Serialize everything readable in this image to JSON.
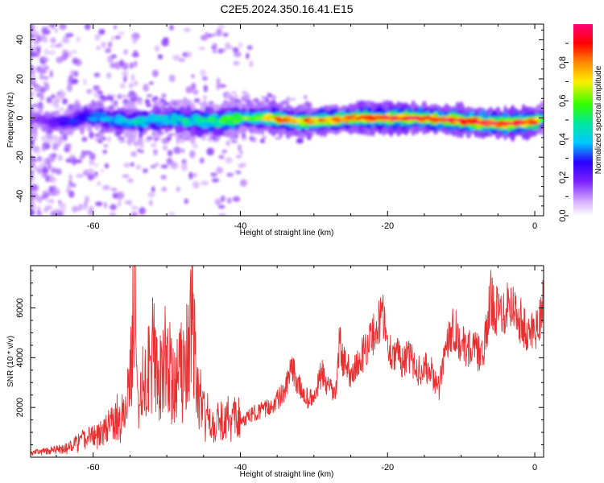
{
  "title": "C2E5.2024.350.16.41.E15",
  "chart_data": [
    {
      "type": "heatmap",
      "xlabel": "Height of straight line (km)",
      "ylabel": "Frequency (Hz)",
      "xlim": [
        -68.5,
        1.2
      ],
      "ylim": [
        -50,
        48
      ],
      "x_ticks": [
        -60,
        -40,
        -20,
        0
      ],
      "y_ticks": [
        -40,
        -20,
        0,
        20,
        40
      ],
      "colorbar": {
        "label": "Normalized spectral amplitude",
        "range": [
          0,
          1
        ],
        "ticks": [
          0.0,
          0.2,
          0.4,
          0.6,
          0.8
        ],
        "scheme": "white-purple-blue-cyan-green-yellow-red-pink"
      },
      "ridge": {
        "x": [
          -68,
          -64,
          -60,
          -56,
          -52,
          -48,
          -44,
          -40,
          -36,
          -32,
          -28,
          -24,
          -20,
          -16,
          -12,
          -8,
          -4,
          0,
          1
        ],
        "frequency": [
          -1,
          -2,
          1,
          -2,
          -1,
          -1,
          -2,
          0,
          0,
          -2,
          -1,
          0,
          0,
          0,
          -1,
          -2,
          -3,
          -2,
          0
        ],
        "peak_amplitude": [
          0.15,
          0.25,
          0.35,
          0.4,
          0.42,
          0.45,
          0.5,
          0.6,
          0.75,
          0.8,
          0.82,
          0.85,
          0.9,
          0.88,
          0.92,
          0.95,
          0.9,
          0.88,
          0.6
        ]
      }
    },
    {
      "type": "line",
      "xlabel": "Height of straight line (km)",
      "ylabel": "SNR (10 * v/v)",
      "xlim": [
        -68.5,
        1.2
      ],
      "ylim": [
        0,
        7700
      ],
      "x_ticks": [
        -60,
        -40,
        -20,
        0
      ],
      "y_ticks": [
        2000,
        4000,
        6000
      ],
      "color": "#e83030",
      "x": [
        -68.5,
        -66,
        -64,
        -62,
        -60,
        -58,
        -56,
        -55,
        -54.3,
        -54,
        -53,
        -52,
        -51,
        -50,
        -49,
        -48,
        -47,
        -46.5,
        -46,
        -45,
        -44,
        -42,
        -40,
        -38,
        -36,
        -34,
        -33,
        -32,
        -31,
        -30,
        -29,
        -28,
        -27,
        -26.5,
        -26,
        -25,
        -24,
        -23,
        -22,
        -21,
        -20.5,
        -20,
        -19,
        -18,
        -17,
        -16,
        -15,
        -14,
        -13,
        -12,
        -11,
        -10,
        -9,
        -8,
        -7,
        -6.5,
        -6,
        -5,
        -4,
        -3.5,
        -3,
        -2,
        -1,
        0,
        0.5,
        1.2
      ],
      "y": [
        200,
        250,
        350,
        600,
        900,
        1200,
        1700,
        2800,
        7500,
        3500,
        2800,
        4000,
        3200,
        4200,
        2800,
        3600,
        4400,
        6800,
        2500,
        1800,
        1300,
        1500,
        1400,
        1800,
        2000,
        2600,
        3600,
        2800,
        2400,
        2300,
        3400,
        2700,
        2600,
        4800,
        3800,
        3400,
        3700,
        4400,
        4900,
        5500,
        5800,
        4400,
        4200,
        3900,
        4000,
        3500,
        3600,
        3400,
        2700,
        4700,
        5300,
        4500,
        4400,
        4300,
        4000,
        5200,
        6400,
        5800,
        6000,
        6400,
        6000,
        5600,
        4800,
        5300,
        5200,
        6800
      ]
    }
  ]
}
